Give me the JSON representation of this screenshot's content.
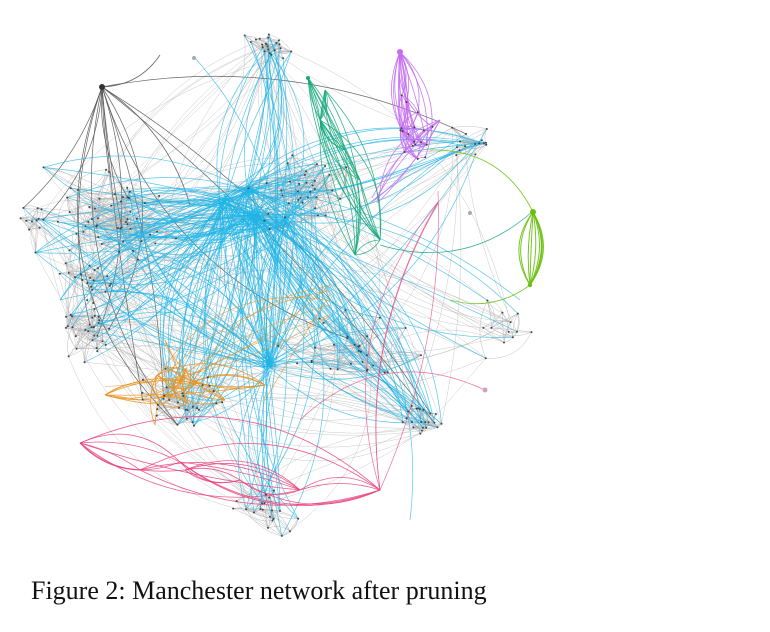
{
  "figure": {
    "caption": "Figure 2: Manchester network after pruning",
    "colors": {
      "gray": "#b4b4b4",
      "gray_dark": "#555555",
      "cyan": "#1fb4e6",
      "violet": "#c46cf0",
      "teal": "#15a87a",
      "green": "#6abf10",
      "orange": "#e8921e",
      "pink": "#e8417c",
      "node": "#444444"
    }
  }
}
